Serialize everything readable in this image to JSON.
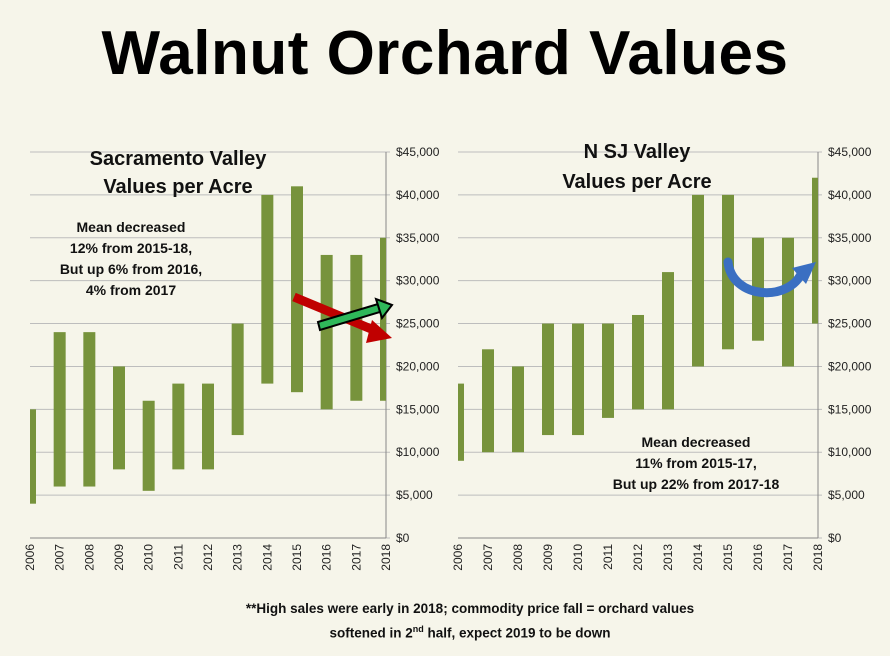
{
  "title": "Walnut Orchard Values",
  "colors": {
    "bar": "#77933c",
    "grid": "#bdbdbd",
    "red_arrow": "#c00000",
    "green_arrow": "#2fb85a",
    "blue_arrow": "#3a6fc2"
  },
  "chart_data": [
    {
      "type": "bar",
      "subtype": "floating-range",
      "title_lines": [
        "Sacramento Valley",
        "Values per Acre"
      ],
      "annotation_lines": [
        "Mean decreased",
        "12% from 2015-18,",
        "But up 6% from 2016,",
        "4% from 2017"
      ],
      "categories": [
        "2006",
        "2007",
        "2008",
        "2009",
        "2010",
        "2011",
        "2012",
        "2013",
        "2014",
        "2015",
        "2016",
        "2017",
        "2018"
      ],
      "low": [
        4000,
        6000,
        6000,
        8000,
        5500,
        8000,
        8000,
        12000,
        18000,
        17000,
        15000,
        16000,
        16000
      ],
      "high": [
        15000,
        24000,
        24000,
        20000,
        16000,
        18000,
        18000,
        25000,
        40000,
        41000,
        33000,
        33000,
        35000
      ],
      "ylim": [
        0,
        45000
      ],
      "yticks": [
        "$0",
        "$5,000",
        "$10,000",
        "$15,000",
        "$20,000",
        "$25,000",
        "$30,000",
        "$35,000",
        "$40,000",
        "$45,000"
      ],
      "arrows": [
        "down-trend-red",
        "up-trend-green"
      ]
    },
    {
      "type": "bar",
      "subtype": "floating-range",
      "title_lines": [
        "N SJ Valley",
        "Values per Acre"
      ],
      "annotation_lines": [
        "Mean decreased",
        "11% from 2015-17,",
        "But up 22% from 2017-18"
      ],
      "categories": [
        "2006",
        "2007",
        "2008",
        "2009",
        "2010",
        "2011",
        "2012",
        "2013",
        "2014",
        "2015",
        "2016",
        "2017",
        "2018"
      ],
      "low": [
        9000,
        10000,
        10000,
        12000,
        12000,
        14000,
        15000,
        15000,
        20000,
        22000,
        23000,
        20000,
        25000
      ],
      "high": [
        18000,
        22000,
        20000,
        25000,
        25000,
        25000,
        26000,
        31000,
        40000,
        40000,
        35000,
        35000,
        42000
      ],
      "ylim": [
        0,
        45000
      ],
      "yticks": [
        "$0",
        "$5,000",
        "$10,000",
        "$15,000",
        "$20,000",
        "$25,000",
        "$30,000",
        "$35,000",
        "$40,000",
        "$45,000"
      ],
      "arrows": [
        "u-turn-blue"
      ]
    }
  ],
  "footnote": {
    "line1": "**High sales were early in 2018; commodity price fall = orchard values",
    "line2_pre": "softened in 2",
    "line2_sup": "nd",
    "line2_post": " half, expect 2019 to be down"
  }
}
